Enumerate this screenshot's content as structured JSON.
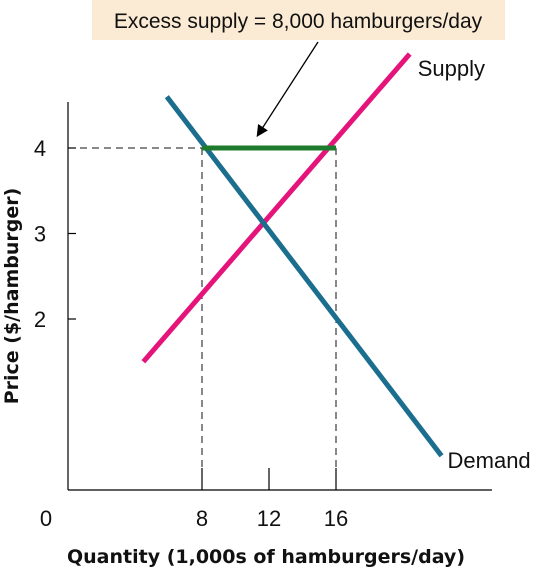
{
  "chart_data": {
    "type": "line",
    "title": "",
    "xlabel": "Quantity (1,000s of hamburgers/day)",
    "ylabel": "Price ($/hamburger)",
    "xlim": [
      0,
      24
    ],
    "ylim": [
      0,
      4.55
    ],
    "origin_label": "0",
    "x_ticks": [
      {
        "value": 8,
        "label": "8"
      },
      {
        "value": 12,
        "label": "12"
      },
      {
        "value": 16,
        "label": "16"
      }
    ],
    "y_ticks": [
      {
        "value": 2,
        "label": "2"
      },
      {
        "value": 3,
        "label": "3"
      },
      {
        "value": 4,
        "label": "4"
      }
    ],
    "series": [
      {
        "name": "Supply",
        "color": "#E5147A",
        "points": [
          {
            "x": 4.5,
            "y": 1.5
          },
          {
            "x": 20.4,
            "y": 5.1
          }
        ]
      },
      {
        "name": "Demand",
        "color": "#1B6E8E",
        "points": [
          {
            "x": 5.9,
            "y": 4.6
          },
          {
            "x": 22.3,
            "y": 0.4
          }
        ]
      }
    ],
    "guides": [
      {
        "from": {
          "x": 0,
          "y": 4
        },
        "to": {
          "x": 16,
          "y": 4
        }
      },
      {
        "from": {
          "x": 8,
          "y": 4
        },
        "to": {
          "x": 8,
          "y": 0
        }
      },
      {
        "from": {
          "x": 16,
          "y": 4
        },
        "to": {
          "x": 16,
          "y": 0
        }
      }
    ],
    "excess_supply": {
      "color": "#1E7B2E",
      "price": 4,
      "from_x": 8,
      "to_x": 16,
      "label": "Excess supply = 8,000 hamburgers/day"
    }
  }
}
